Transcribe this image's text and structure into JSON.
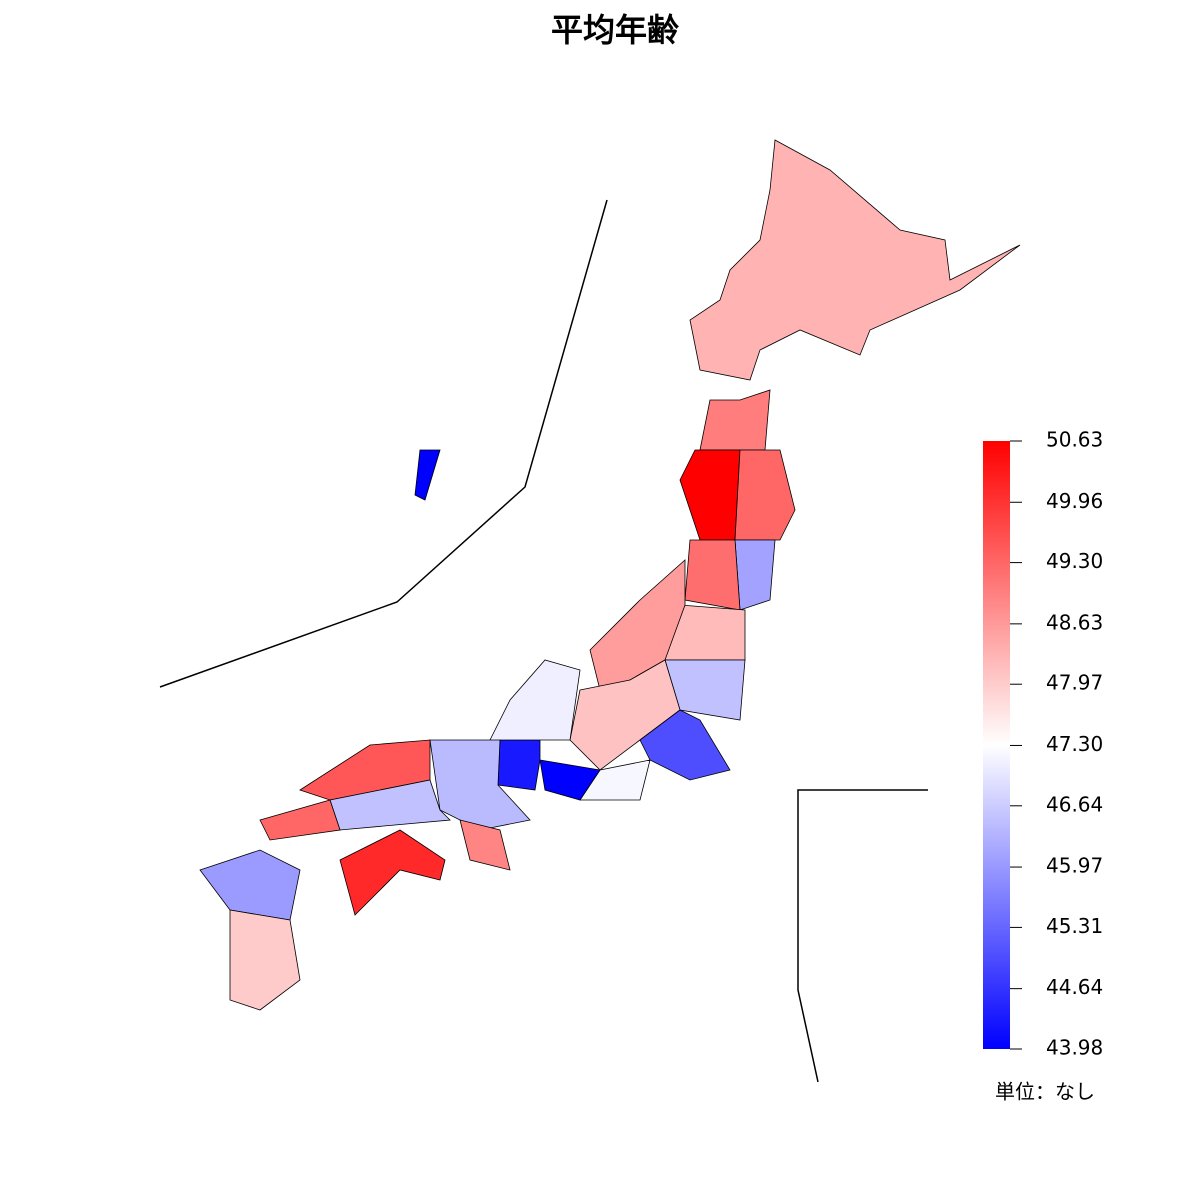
{
  "chart_data": {
    "type": "choropleth",
    "title": "平均年齢",
    "unit_note": "単位：なし",
    "values": [
      48.3,
      49.0,
      50.63,
      49.3,
      46.1,
      49.2,
      48.2,
      48.6,
      46.5,
      48.1,
      45.0,
      47.2,
      43.98,
      44.3,
      47.1,
      46.4,
      48.9,
      49.5,
      46.5,
      49.3,
      50.1,
      46.0,
      48.0,
      43.98
    ],
    "colorlim": [
      43.98,
      50.63
    ],
    "colors": {
      "low": "#0000ff",
      "mid": "#ffffff",
      "high": "#ff0000"
    },
    "colorticks": [
      43.98,
      44.64,
      45.31,
      45.97,
      46.64,
      {
        "value": 47.3,
        "label": "47.30"
      },
      47.97,
      48.63,
      {
        "value": 49.3,
        "label": "49.30"
      },
      49.96,
      50.63
    ]
  }
}
